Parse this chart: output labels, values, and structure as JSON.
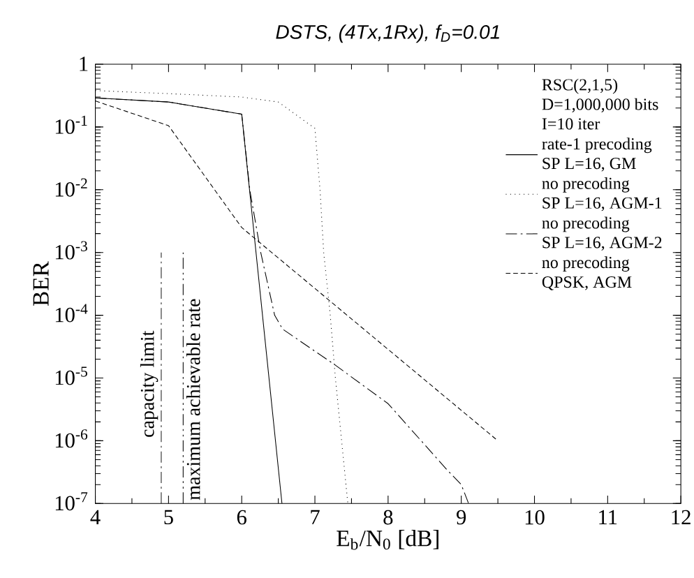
{
  "chart_data": {
    "type": "line",
    "title": "DSTS, (4Tx,1Rx), f$_{D}$=0.01",
    "xlabel": "E$_{b}$/N$_{0}$ [dB]",
    "ylabel": "BER",
    "legend_title": "RSC(2,1,5)\nD=1,000,000 bits\nI=10 iter",
    "series": [
      {
        "name": "rate-1 precoding\nSP L=16, GM",
        "color": "#000000",
        "line_style": "solid",
        "x": [
          4,
          5,
          6,
          6.55
        ],
        "values": [
          0.29,
          0.25,
          0.16,
          1e-07
        ]
      },
      {
        "name": "no precoding\nSP L=16, AGM-1",
        "color": "#000000",
        "line_style": "dotted",
        "x": [
          4,
          5,
          6,
          6.5,
          7,
          7.07,
          7.12,
          7.21,
          7.28,
          7.45
        ],
        "values": [
          0.38,
          0.34,
          0.3,
          0.25,
          0.095,
          0.01,
          0.001,
          0.0001,
          1e-05,
          1e-07
        ]
      },
      {
        "name": "no precoding\nSP L=16, AGM-2",
        "color": "#000000",
        "line_style": "dashdot",
        "x": [
          4,
          5,
          6,
          6.11,
          6.26,
          6.45,
          6.56,
          7.28,
          8.0,
          8.8,
          9.0,
          9.1
        ],
        "values": [
          0.29,
          0.25,
          0.16,
          0.01,
          0.001,
          0.0001,
          6e-05,
          1.6e-05,
          3.9e-06,
          3.5e-07,
          2e-07,
          1e-07
        ]
      },
      {
        "name": "no precoding\nQPSK, AGM",
        "color": "#000000",
        "line_style": "dashed",
        "x": [
          4,
          5,
          6,
          9.5
        ],
        "values": [
          0.26,
          0.105,
          0.0025,
          1e-06
        ]
      }
    ],
    "ref_lines": [
      {
        "axis": "x",
        "value": 4.9,
        "label": "capacity limit",
        "color": "#000000",
        "line_style": "dashdot"
      },
      {
        "axis": "x",
        "value": 5.2,
        "label": "maximum achievable rate",
        "color": "#000000",
        "line_style": "dashdotdot"
      }
    ],
    "log": "y",
    "grid": false,
    "legend": "top right",
    "marker": "none",
    "xlim": [
      4,
      12
    ],
    "ylim": [
      1e-07,
      1
    ],
    "xticks": [
      4,
      5,
      6,
      7,
      8,
      9,
      10,
      11,
      12
    ],
    "yticks": [
      {
        "value": 1e-07,
        "label": "10$^{-7}$"
      },
      {
        "value": 1e-06,
        "label": "10$^{-6}$"
      },
      {
        "value": 1e-05,
        "label": "10$^{-5}$"
      },
      {
        "value": 0.0001,
        "label": "10$^{-4}$"
      },
      {
        "value": 0.001,
        "label": "10$^{-3}$"
      },
      {
        "value": 0.01,
        "label": "10$^{-2}$"
      },
      {
        "value": 0.1,
        "label": "10$^{-1}$"
      },
      1
    ]
  }
}
